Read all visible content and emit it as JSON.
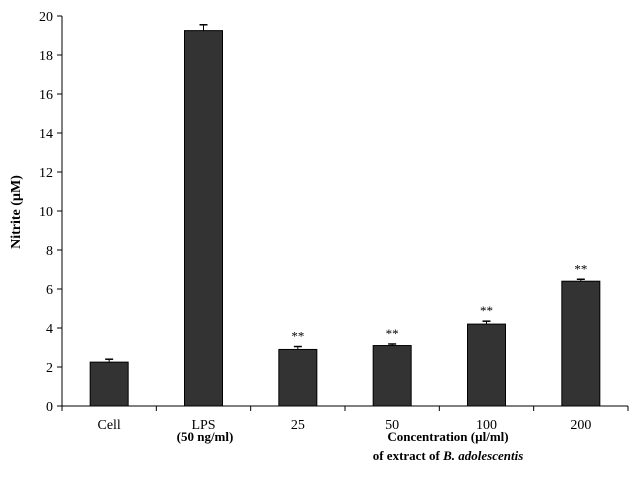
{
  "chart_data": {
    "type": "bar",
    "categories": [
      "Cell",
      "LPS",
      "25",
      "50",
      "100",
      "200"
    ],
    "values": [
      2.25,
      19.25,
      2.9,
      3.1,
      4.2,
      6.4
    ],
    "errors": [
      0.15,
      0.3,
      0.15,
      0.08,
      0.15,
      0.1
    ],
    "significance": [
      "",
      "",
      "**",
      "**",
      "**",
      "**"
    ],
    "ylabel": "Nitrite (µM)",
    "ylim": [
      0,
      20
    ],
    "yticks": [
      0,
      2,
      4,
      6,
      8,
      10,
      12,
      14,
      16,
      18,
      20
    ],
    "annotations": {
      "lps_dose": "(50 ng/ml)",
      "concentration_line1": "Concentration (µl/ml)",
      "concentration_line2_prefix": "of extract of ",
      "concentration_line2_species": "B. adolescentis"
    },
    "bar_color": "#333333",
    "grid": false,
    "legend": "none"
  }
}
